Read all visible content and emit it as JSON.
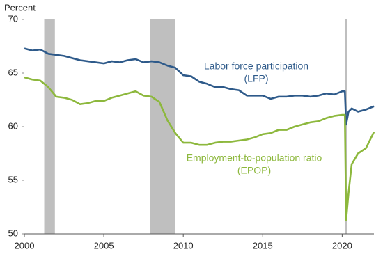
{
  "chart_data": {
    "type": "line",
    "y_label": "Percent",
    "x": [
      2000,
      2000.5,
      2001,
      2001.5,
      2002,
      2002.5,
      2003,
      2003.5,
      2004,
      2004.5,
      2005,
      2005.5,
      2006,
      2006.5,
      2007,
      2007.5,
      2008,
      2008.5,
      2009,
      2009.5,
      2010,
      2010.5,
      2011,
      2011.5,
      2012,
      2012.5,
      2013,
      2013.5,
      2014,
      2014.5,
      2015,
      2015.5,
      2016,
      2016.5,
      2017,
      2017.5,
      2018,
      2018.5,
      2019,
      2019.5,
      2020,
      2020.17,
      2020.25,
      2020.4,
      2020.6,
      2021,
      2021.5,
      2022
    ],
    "series": [
      {
        "name": "Labor force participation (LFP)",
        "color": "#2e5a8a",
        "annotation": [
          "Labor force participation",
          "(LFP)"
        ],
        "values": [
          67.3,
          67.1,
          67.2,
          66.8,
          66.7,
          66.6,
          66.4,
          66.2,
          66.1,
          66.0,
          65.9,
          66.1,
          66.0,
          66.2,
          66.3,
          66.0,
          66.1,
          66.0,
          65.7,
          65.5,
          64.8,
          64.7,
          64.2,
          64.0,
          63.7,
          63.7,
          63.5,
          63.4,
          62.9,
          62.9,
          62.9,
          62.6,
          62.8,
          62.8,
          62.9,
          62.9,
          62.8,
          62.9,
          63.1,
          63.0,
          63.3,
          63.3,
          60.2,
          61.4,
          61.7,
          61.4,
          61.6,
          61.9
        ]
      },
      {
        "name": "Employment-to-population ratio (EPOP)",
        "color": "#8db83d",
        "annotation": [
          "Employment-to-population ratio",
          "(EPOP)"
        ],
        "values": [
          64.6,
          64.4,
          64.3,
          63.7,
          62.8,
          62.7,
          62.5,
          62.1,
          62.2,
          62.4,
          62.4,
          62.7,
          62.9,
          63.1,
          63.3,
          62.9,
          62.8,
          62.3,
          60.6,
          59.4,
          58.5,
          58.5,
          58.3,
          58.3,
          58.5,
          58.6,
          58.6,
          58.7,
          58.8,
          59.0,
          59.3,
          59.4,
          59.7,
          59.7,
          60.0,
          60.2,
          60.4,
          60.5,
          60.8,
          61.0,
          61.1,
          61.1,
          51.3,
          53.8,
          56.5,
          57.5,
          58.0,
          59.5
        ]
      }
    ],
    "recessions": [
      [
        2001.25,
        2001.92
      ],
      [
        2007.92,
        2009.5
      ],
      [
        2020.17,
        2020.33
      ]
    ],
    "recession_color": "#bfbfbf",
    "xlim": [
      2000,
      2022
    ],
    "xticks": [
      2000,
      2005,
      2010,
      2015,
      2020
    ],
    "ylim": [
      50,
      70
    ],
    "yticks": [
      50,
      55,
      60,
      65,
      70
    ]
  }
}
